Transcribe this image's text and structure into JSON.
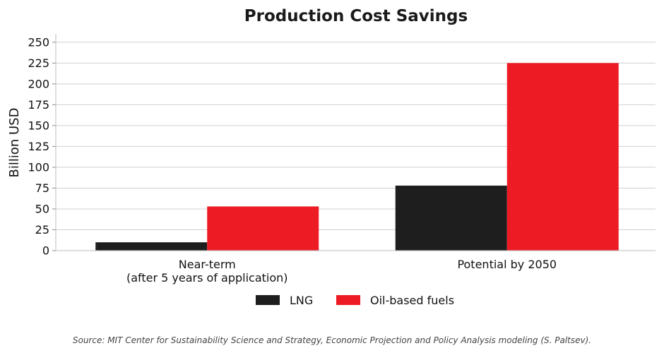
{
  "chart_data": {
    "type": "bar",
    "title": "Production Cost Savings",
    "xlabel": "",
    "ylabel": "Billion USD",
    "categories": [
      [
        "Near-term",
        "(after 5 years of application)"
      ],
      [
        "Potential by 2050"
      ]
    ],
    "series": [
      {
        "name": "LNG",
        "color": "#1e1e1e",
        "values": [
          10,
          78
        ]
      },
      {
        "name": "Oil-based fuels",
        "color": "#ed1c24",
        "values": [
          53,
          225
        ]
      }
    ],
    "ylim": [
      0,
      260
    ],
    "yticks": [
      0,
      25,
      50,
      75,
      100,
      125,
      150,
      175,
      200,
      225,
      250
    ],
    "grid": "horizontal",
    "legend": "bottom-center",
    "source": "Source: MIT Center for Sustainability Science and Strategy, Economic Projection and Policy Analysis modeling (S. Paltsev)."
  }
}
